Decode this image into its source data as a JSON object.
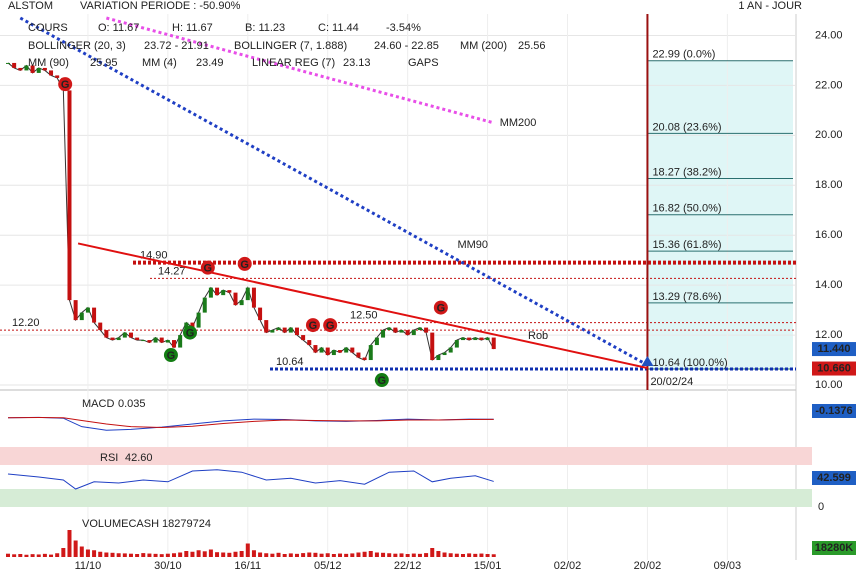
{
  "header": {
    "symbol": "ALSTOM",
    "variation": "VARIATION PERIODE : -50.90%",
    "period": "1 AN - JOUR"
  },
  "legend": {
    "row1": [
      "COURS",
      "O: 11.67",
      "H: 11.67",
      "B: 11.23",
      "C: 11.44",
      "-3.54%"
    ],
    "row2": [
      "BOLLINGER (20, 3)",
      "23.72 - 21.91",
      "BOLLINGER (7, 1.888)",
      "24.60 - 22.85",
      "MM (200)",
      "25.56"
    ],
    "row3": [
      "MM (90)",
      "25.95",
      "MM (4)",
      "23.49",
      "LINEAR REG (7)",
      "23.13",
      "GAPS"
    ]
  },
  "chart_data": {
    "type": "line",
    "grid": true,
    "xlim": [
      0,
      128
    ],
    "xticks": [
      {
        "value": 13,
        "label": "11/10"
      },
      {
        "value": 26,
        "label": "30/10"
      },
      {
        "value": 39,
        "label": "16/11"
      },
      {
        "value": 52,
        "label": "05/12"
      },
      {
        "value": 65,
        "label": "22/12"
      },
      {
        "value": 78,
        "label": "15/01"
      },
      {
        "value": 91,
        "label": "02/02"
      },
      {
        "value": 104,
        "label": "20/02"
      },
      {
        "value": 117,
        "label": "09/03"
      }
    ],
    "ylim": [
      9.8,
      24.7
    ],
    "yticks": [
      {
        "value": 24,
        "label": "24.00"
      },
      {
        "value": 22,
        "label": "22.00"
      },
      {
        "value": 20,
        "label": "20.00"
      },
      {
        "value": 18,
        "label": "18.00"
      },
      {
        "value": 16,
        "label": "16.00"
      },
      {
        "value": 14,
        "label": "14.00"
      },
      {
        "value": 12,
        "label": "12.00"
      },
      {
        "value": 10,
        "label": "10.00"
      }
    ],
    "series": [
      {
        "name": "COURS",
        "color": "#1a7a1a",
        "values": [
          22.9,
          22.7,
          22.6,
          22.8,
          22.5,
          22.7,
          22.6,
          22.4,
          22.3,
          21.8,
          13.4,
          12.6,
          12.9,
          13.1,
          12.5,
          12.2,
          11.9,
          11.8,
          11.9,
          12.1,
          11.9,
          11.8,
          11.8,
          11.7,
          11.9,
          11.7,
          11.8,
          11.5,
          12.0,
          12.5,
          12.3,
          12.9,
          13.5,
          13.9,
          13.6,
          13.8,
          13.7,
          13.2,
          13.4,
          13.9,
          13.1,
          12.6,
          12.1,
          12.2,
          12.3,
          12.1,
          12.3,
          12.0,
          11.8,
          11.6,
          11.3,
          11.5,
          11.2,
          11.4,
          11.3,
          11.5,
          11.3,
          11.1,
          11.0,
          11.6,
          11.9,
          12.2,
          12.3,
          12.1,
          12.2,
          12.0,
          12.2,
          12.3,
          12.1,
          11.0,
          11.2,
          11.3,
          11.5,
          11.8,
          11.9,
          11.8,
          11.9,
          11.8,
          11.9,
          11.44
        ]
      }
    ],
    "moving_averages": [
      {
        "name": "MM90",
        "color": "#1f3fc4",
        "x": [
          2,
          104
        ],
        "values": [
          24.7,
          10.8
        ]
      },
      {
        "name": "MM200",
        "color": "#e84ee8",
        "x": [
          16,
          79
        ],
        "values": [
          24.7,
          20.5
        ]
      }
    ],
    "regression": {
      "name": "Rob",
      "color": "#e01010",
      "x": [
        11.4,
        104
      ],
      "values": [
        15.67,
        10.68
      ]
    },
    "levels": [
      {
        "value": 14.9,
        "label": "14.90"
      },
      {
        "value": 14.27,
        "label": "14.27"
      },
      {
        "value": 12.5,
        "label": "12.50"
      },
      {
        "value": 12.2,
        "label": "12.20"
      },
      {
        "value": 10.64,
        "label": "10.64"
      }
    ],
    "fibonacci": [
      {
        "value": 22.99,
        "label": "22.99 (0.0%)"
      },
      {
        "value": 20.08,
        "label": "20.08 (23.6%)"
      },
      {
        "value": 18.27,
        "label": "18.27 (38.2%)"
      },
      {
        "value": 16.82,
        "label": "16.82 (50.0%)"
      },
      {
        "value": 15.36,
        "label": "15.36 (61.8%)"
      },
      {
        "value": 13.29,
        "label": "13.29 (78.6%)"
      },
      {
        "value": 10.64,
        "label": "10.64 (100.0%)"
      }
    ],
    "target": {
      "x": 104,
      "label": "20/02/24"
    },
    "gap_label": "G",
    "gaps": [
      {
        "x": 9.3,
        "price": 22.05,
        "color": "#d01818"
      },
      {
        "x": 32.5,
        "price": 14.7,
        "color": "#d01818"
      },
      {
        "x": 38.5,
        "price": 14.85,
        "color": "#d01818"
      },
      {
        "x": 49.6,
        "price": 12.4,
        "color": "#d01818"
      },
      {
        "x": 52.4,
        "price": 12.4,
        "color": "#d01818"
      },
      {
        "x": 70.4,
        "price": 13.1,
        "color": "#d01818"
      },
      {
        "x": 29.6,
        "price": 12.1,
        "color": "#137d13"
      },
      {
        "x": 26.5,
        "price": 11.2,
        "color": "#137d13"
      },
      {
        "x": 60.8,
        "price": 10.2,
        "color": "#137d13"
      }
    ],
    "price_tags": [
      {
        "value": 11.44,
        "label": "11.440",
        "color": "#1f5fc4"
      },
      {
        "value": 10.66,
        "label": "10.660",
        "color": "#d01818"
      }
    ]
  },
  "macd": {
    "name": "MACD",
    "value": "0.035",
    "tag": "-0.1376",
    "ylim": [
      -3,
      1.5
    ],
    "x": [
      0,
      5,
      9,
      12,
      16,
      20,
      25,
      30,
      35,
      40,
      45,
      50,
      55,
      60,
      65,
      70,
      75,
      79
    ],
    "macd": [
      0.2,
      0.3,
      0.1,
      -1.8,
      -2.6,
      -2.4,
      -1.9,
      -1.2,
      -0.5,
      -0.1,
      -0.2,
      -0.5,
      -0.6,
      -0.4,
      -0.1,
      -0.3,
      -0.1,
      -0.14
    ],
    "signal": [
      0.2,
      0.25,
      0.2,
      -0.4,
      -1.2,
      -1.8,
      -2.0,
      -1.7,
      -1.1,
      -0.6,
      -0.3,
      -0.4,
      -0.5,
      -0.5,
      -0.3,
      -0.3,
      -0.2,
      -0.15
    ]
  },
  "rsi": {
    "name": "RSI",
    "value": "42.60",
    "tag": "42.599",
    "ylim": [
      0,
      100
    ],
    "yticks": [
      0
    ],
    "upper": 70,
    "lower": 30,
    "x": [
      0,
      5,
      9,
      11,
      14,
      18,
      22,
      26,
      30,
      34,
      38,
      42,
      46,
      50,
      54,
      58,
      62,
      66,
      69,
      72,
      76,
      79
    ],
    "values": [
      55,
      50,
      45,
      30,
      42,
      40,
      45,
      42,
      60,
      62,
      58,
      45,
      48,
      40,
      44,
      38,
      58,
      60,
      42,
      48,
      52,
      42.6
    ]
  },
  "volume": {
    "name": "VOLUMECASH",
    "value": "18279724",
    "tag": "18280K",
    "color": "#d01818",
    "ylim": [
      0,
      200000000
    ],
    "values": [
      22000000,
      18000000,
      20000000,
      15000000,
      19000000,
      17000000,
      21000000,
      16000000,
      25000000,
      60000000,
      180000000,
      110000000,
      70000000,
      50000000,
      45000000,
      35000000,
      30000000,
      28000000,
      25000000,
      24000000,
      22000000,
      20000000,
      26000000,
      23000000,
      21000000,
      19000000,
      22000000,
      25000000,
      30000000,
      40000000,
      35000000,
      45000000,
      38000000,
      50000000,
      32000000,
      30000000,
      28000000,
      35000000,
      40000000,
      90000000,
      45000000,
      30000000,
      25000000,
      22000000,
      28000000,
      20000000,
      24000000,
      21000000,
      26000000,
      30000000,
      28000000,
      22000000,
      25000000,
      20000000,
      23000000,
      21000000,
      24000000,
      30000000,
      35000000,
      40000000,
      30000000,
      28000000,
      25000000,
      22000000,
      24000000,
      20000000,
      23000000,
      21000000,
      26000000,
      60000000,
      40000000,
      30000000,
      25000000,
      22000000,
      20000000,
      24000000,
      21000000,
      23000000,
      20000000,
      18279724
    ]
  }
}
